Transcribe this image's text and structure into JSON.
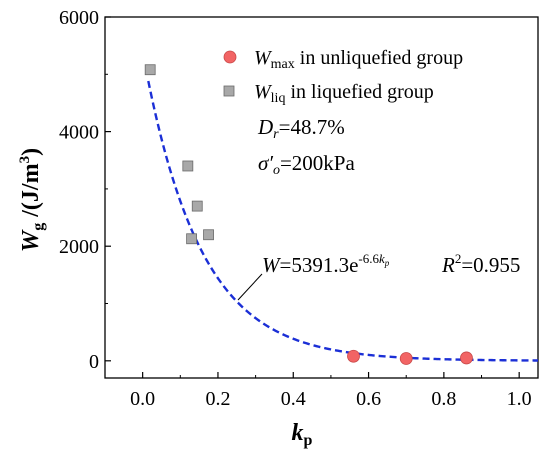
{
  "chart_data": {
    "type": "scatter",
    "xlim": [
      -0.1,
      1.05
    ],
    "ylim": [
      -300,
      6000
    ],
    "x_ticks": [
      0.0,
      0.2,
      0.4,
      0.6,
      0.8,
      1.0
    ],
    "x_tick_labels": [
      "0.0",
      "0.2",
      "0.4",
      "0.6",
      "0.8",
      "1.0"
    ],
    "y_ticks": [
      0,
      2000,
      4000,
      6000
    ],
    "y_tick_labels": [
      "0",
      "2000",
      "4000",
      "6000"
    ],
    "xlabel": {
      "main": "k",
      "sub": "p"
    },
    "ylabel": {
      "main": "W",
      "sub": "g",
      "rest": " /(J/m",
      "sup": "3",
      "end": ")"
    },
    "grid": false,
    "legend_position": "top-right",
    "series": [
      {
        "name": {
          "main": "W",
          "sub": "max",
          "rest": " in unliquefied group"
        },
        "marker": "circle",
        "color": "#f26464",
        "points": [
          {
            "x": 0.56,
            "y": 80
          },
          {
            "x": 0.7,
            "y": 40
          },
          {
            "x": 0.86,
            "y": 50
          }
        ]
      },
      {
        "name": {
          "main": "W",
          "sub": "liq",
          "rest": " in liquefied group"
        },
        "marker": "square",
        "color": "#a8a8a8",
        "points": [
          {
            "x": 0.02,
            "y": 5080
          },
          {
            "x": 0.12,
            "y": 3400
          },
          {
            "x": 0.145,
            "y": 2700
          },
          {
            "x": 0.13,
            "y": 2130
          },
          {
            "x": 0.175,
            "y": 2200
          }
        ]
      }
    ],
    "fit": {
      "a": 5391.3,
      "b": -6.6,
      "x_range": [
        0.015,
        1.05
      ],
      "color": "#1b2fd6",
      "style": "dashed"
    },
    "annotations": {
      "dr": {
        "main": "D",
        "sub": "r",
        "rest": "=48.7%"
      },
      "sigma": {
        "main": "σ′",
        "sub": "o",
        "rest": "=200kPa"
      },
      "equation": {
        "lhs": "W",
        "mid": "=5391.3e",
        "exp": "-6.6",
        "exp_var": "k",
        "exp_sub": "p"
      },
      "r2": {
        "main": "R",
        "sup": "2",
        "rest": "=0.955"
      }
    }
  }
}
